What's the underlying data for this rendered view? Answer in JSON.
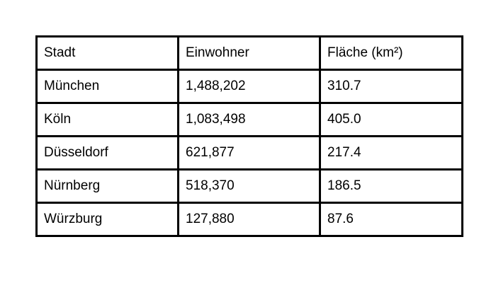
{
  "table": {
    "headers": [
      "Stadt",
      "Einwohner",
      "Fläche (km²)"
    ],
    "rows": [
      [
        "München",
        "1,488,202",
        "310.7"
      ],
      [
        "Köln",
        "1,083,498",
        "405.0"
      ],
      [
        "Düsseldorf",
        "621,877",
        "217.4"
      ],
      [
        "Nürnberg",
        "518,370",
        "186.5"
      ],
      [
        "Würzburg",
        "127,880",
        "87.6"
      ]
    ]
  },
  "colors": {
    "border": "#000000",
    "background": "#ffffff",
    "text": "#000000"
  }
}
